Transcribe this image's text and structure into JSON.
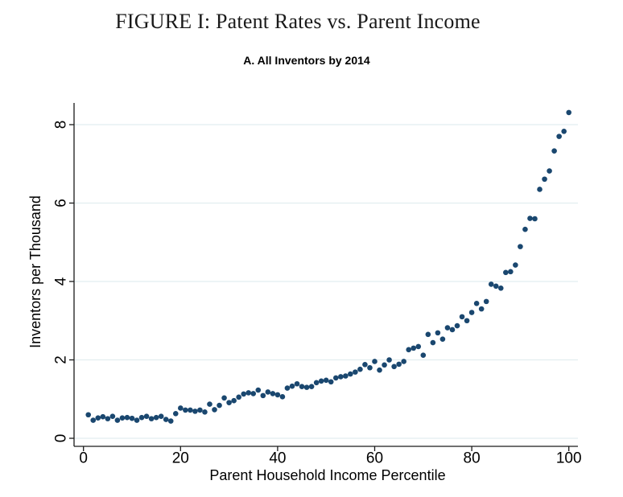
{
  "figure": {
    "title": "FIGURE I: Patent Rates vs. Parent Income"
  },
  "chart_data": {
    "type": "scatter",
    "title": "A. All Inventors by 2014",
    "xlabel": "Parent Household Income Percentile",
    "ylabel": "Inventors per Thousand",
    "x_ticks": [
      0,
      20,
      40,
      60,
      80,
      100
    ],
    "y_ticks": [
      0,
      2,
      4,
      6,
      8
    ],
    "xlim": [
      -2,
      102
    ],
    "ylim": [
      -0.2,
      8.5
    ],
    "grid": "horizontal gridlines at labeled y ticks",
    "legend": "none",
    "marker_color": "#1a476f",
    "gridline_color": "#e2edf0",
    "axis_color": "#1a1a1a",
    "points": [
      [
        1,
        0.6
      ],
      [
        2,
        0.46
      ],
      [
        3,
        0.52
      ],
      [
        4,
        0.55
      ],
      [
        5,
        0.5
      ],
      [
        6,
        0.56
      ],
      [
        7,
        0.46
      ],
      [
        8,
        0.52
      ],
      [
        9,
        0.53
      ],
      [
        10,
        0.51
      ],
      [
        11,
        0.46
      ],
      [
        12,
        0.53
      ],
      [
        13,
        0.56
      ],
      [
        14,
        0.5
      ],
      [
        15,
        0.53
      ],
      [
        16,
        0.56
      ],
      [
        17,
        0.48
      ],
      [
        18,
        0.44
      ],
      [
        19,
        0.63
      ],
      [
        20,
        0.77
      ],
      [
        21,
        0.72
      ],
      [
        22,
        0.72
      ],
      [
        23,
        0.69
      ],
      [
        24,
        0.72
      ],
      [
        25,
        0.67
      ],
      [
        26,
        0.87
      ],
      [
        27,
        0.73
      ],
      [
        28,
        0.84
      ],
      [
        29,
        1.03
      ],
      [
        30,
        0.91
      ],
      [
        31,
        0.96
      ],
      [
        32,
        1.05
      ],
      [
        33,
        1.13
      ],
      [
        34,
        1.16
      ],
      [
        35,
        1.14
      ],
      [
        36,
        1.23
      ],
      [
        37,
        1.09
      ],
      [
        38,
        1.18
      ],
      [
        39,
        1.14
      ],
      [
        40,
        1.11
      ],
      [
        41,
        1.06
      ],
      [
        42,
        1.28
      ],
      [
        43,
        1.33
      ],
      [
        44,
        1.39
      ],
      [
        45,
        1.32
      ],
      [
        46,
        1.3
      ],
      [
        47,
        1.32
      ],
      [
        48,
        1.42
      ],
      [
        49,
        1.46
      ],
      [
        50,
        1.48
      ],
      [
        51,
        1.44
      ],
      [
        52,
        1.54
      ],
      [
        53,
        1.57
      ],
      [
        54,
        1.59
      ],
      [
        55,
        1.64
      ],
      [
        56,
        1.69
      ],
      [
        57,
        1.76
      ],
      [
        58,
        1.88
      ],
      [
        59,
        1.8
      ],
      [
        60,
        1.96
      ],
      [
        61,
        1.74
      ],
      [
        62,
        1.87
      ],
      [
        63,
        2.0
      ],
      [
        64,
        1.83
      ],
      [
        65,
        1.89
      ],
      [
        66,
        1.96
      ],
      [
        67,
        2.26
      ],
      [
        68,
        2.3
      ],
      [
        69,
        2.34
      ],
      [
        70,
        2.12
      ],
      [
        71,
        2.65
      ],
      [
        72,
        2.44
      ],
      [
        73,
        2.69
      ],
      [
        74,
        2.53
      ],
      [
        75,
        2.82
      ],
      [
        76,
        2.77
      ],
      [
        77,
        2.87
      ],
      [
        78,
        3.1
      ],
      [
        79,
        3.0
      ],
      [
        80,
        3.21
      ],
      [
        81,
        3.44
      ],
      [
        82,
        3.3
      ],
      [
        83,
        3.49
      ],
      [
        84,
        3.93
      ],
      [
        85,
        3.88
      ],
      [
        86,
        3.83
      ],
      [
        87,
        4.23
      ],
      [
        88,
        4.25
      ],
      [
        89,
        4.42
      ],
      [
        90,
        4.89
      ],
      [
        91,
        5.33
      ],
      [
        92,
        5.61
      ],
      [
        93,
        5.6
      ],
      [
        94,
        6.35
      ],
      [
        95,
        6.61
      ],
      [
        96,
        6.82
      ],
      [
        97,
        7.33
      ],
      [
        98,
        7.7
      ],
      [
        99,
        7.83
      ],
      [
        100,
        8.31
      ]
    ]
  }
}
